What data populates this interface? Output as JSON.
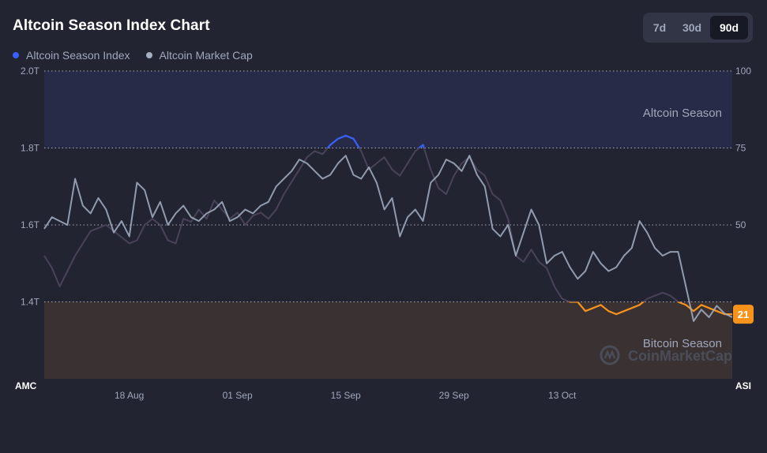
{
  "header": {
    "title": "Altcoin Season Index Chart"
  },
  "range_buttons": [
    {
      "label": "7d",
      "active": false
    },
    {
      "label": "30d",
      "active": false
    },
    {
      "label": "90d",
      "active": true
    }
  ],
  "colors": {
    "index_line": "#3861fb",
    "market_cap_line": "#a6b0c3",
    "bitcoin_zone_line": "#f7931a",
    "altcoin_zone": "#272b47",
    "bitcoin_zone": "#3a3133",
    "badge": "#f7931a"
  },
  "watermark": "CoinMarketCap",
  "chart_data": {
    "type": "line",
    "legend": [
      "Altcoin Season Index",
      "Altcoin Market Cap"
    ],
    "legend_placement": "top-left",
    "left_axis": {
      "label": "AMC",
      "ticks": [
        "2.0T",
        "1.8T",
        "1.6T",
        "1.4T"
      ],
      "ylim": [
        1.2,
        2.0
      ],
      "unit": "T"
    },
    "right_axis": {
      "label": "ASI",
      "ticks": [
        "100",
        "75",
        "50",
        "25"
      ],
      "ylim": [
        0,
        100
      ]
    },
    "x_ticks": [
      {
        "label": "18 Aug",
        "day": 11
      },
      {
        "label": "01 Sep",
        "day": 25
      },
      {
        "label": "15 Sep",
        "day": 39
      },
      {
        "label": "29 Sep",
        "day": 53
      },
      {
        "label": "13 Oct",
        "day": 67
      }
    ],
    "x_range_days": [
      0,
      89
    ],
    "zones": [
      {
        "name": "Altcoin Season",
        "from": 75,
        "to": 100
      },
      {
        "name": "Bitcoin Season",
        "from": 0,
        "to": 25
      }
    ],
    "current_index": "21",
    "series": [
      {
        "name": "Altcoin Season Index",
        "axis": "right",
        "values": [
          40,
          36,
          30,
          35,
          40,
          44,
          48,
          49,
          50,
          48,
          46,
          44,
          45,
          50,
          52,
          50,
          45,
          44,
          52,
          51,
          55,
          52,
          58,
          55,
          52,
          54,
          50,
          53,
          54,
          52,
          55,
          60,
          64,
          68,
          72,
          74,
          73,
          76,
          78,
          79,
          78,
          74,
          68,
          70,
          72,
          68,
          66,
          70,
          74,
          76,
          68,
          62,
          60,
          66,
          70,
          72,
          68,
          66,
          60,
          58,
          52,
          40,
          38,
          42,
          38,
          36,
          30,
          26,
          25,
          25,
          22,
          23,
          24,
          22,
          21,
          22,
          23,
          24,
          26,
          27,
          28,
          27,
          25,
          24,
          22,
          24,
          23,
          22,
          21,
          21
        ]
      },
      {
        "name": "Altcoin Market Cap",
        "axis": "left",
        "values": [
          1.59,
          1.62,
          1.61,
          1.6,
          1.72,
          1.65,
          1.63,
          1.67,
          1.64,
          1.58,
          1.61,
          1.57,
          1.71,
          1.69,
          1.62,
          1.66,
          1.6,
          1.63,
          1.65,
          1.62,
          1.61,
          1.63,
          1.64,
          1.66,
          1.61,
          1.62,
          1.64,
          1.63,
          1.65,
          1.66,
          1.7,
          1.72,
          1.74,
          1.77,
          1.76,
          1.74,
          1.72,
          1.73,
          1.76,
          1.78,
          1.73,
          1.72,
          1.75,
          1.71,
          1.64,
          1.67,
          1.57,
          1.62,
          1.64,
          1.61,
          1.71,
          1.73,
          1.77,
          1.76,
          1.74,
          1.78,
          1.73,
          1.7,
          1.59,
          1.57,
          1.6,
          1.52,
          1.58,
          1.64,
          1.6,
          1.5,
          1.52,
          1.53,
          1.49,
          1.46,
          1.48,
          1.53,
          1.5,
          1.48,
          1.49,
          1.52,
          1.54,
          1.61,
          1.58,
          1.54,
          1.52,
          1.53,
          1.53,
          1.44,
          1.35,
          1.38,
          1.36,
          1.39,
          1.37,
          1.36
        ]
      }
    ]
  }
}
